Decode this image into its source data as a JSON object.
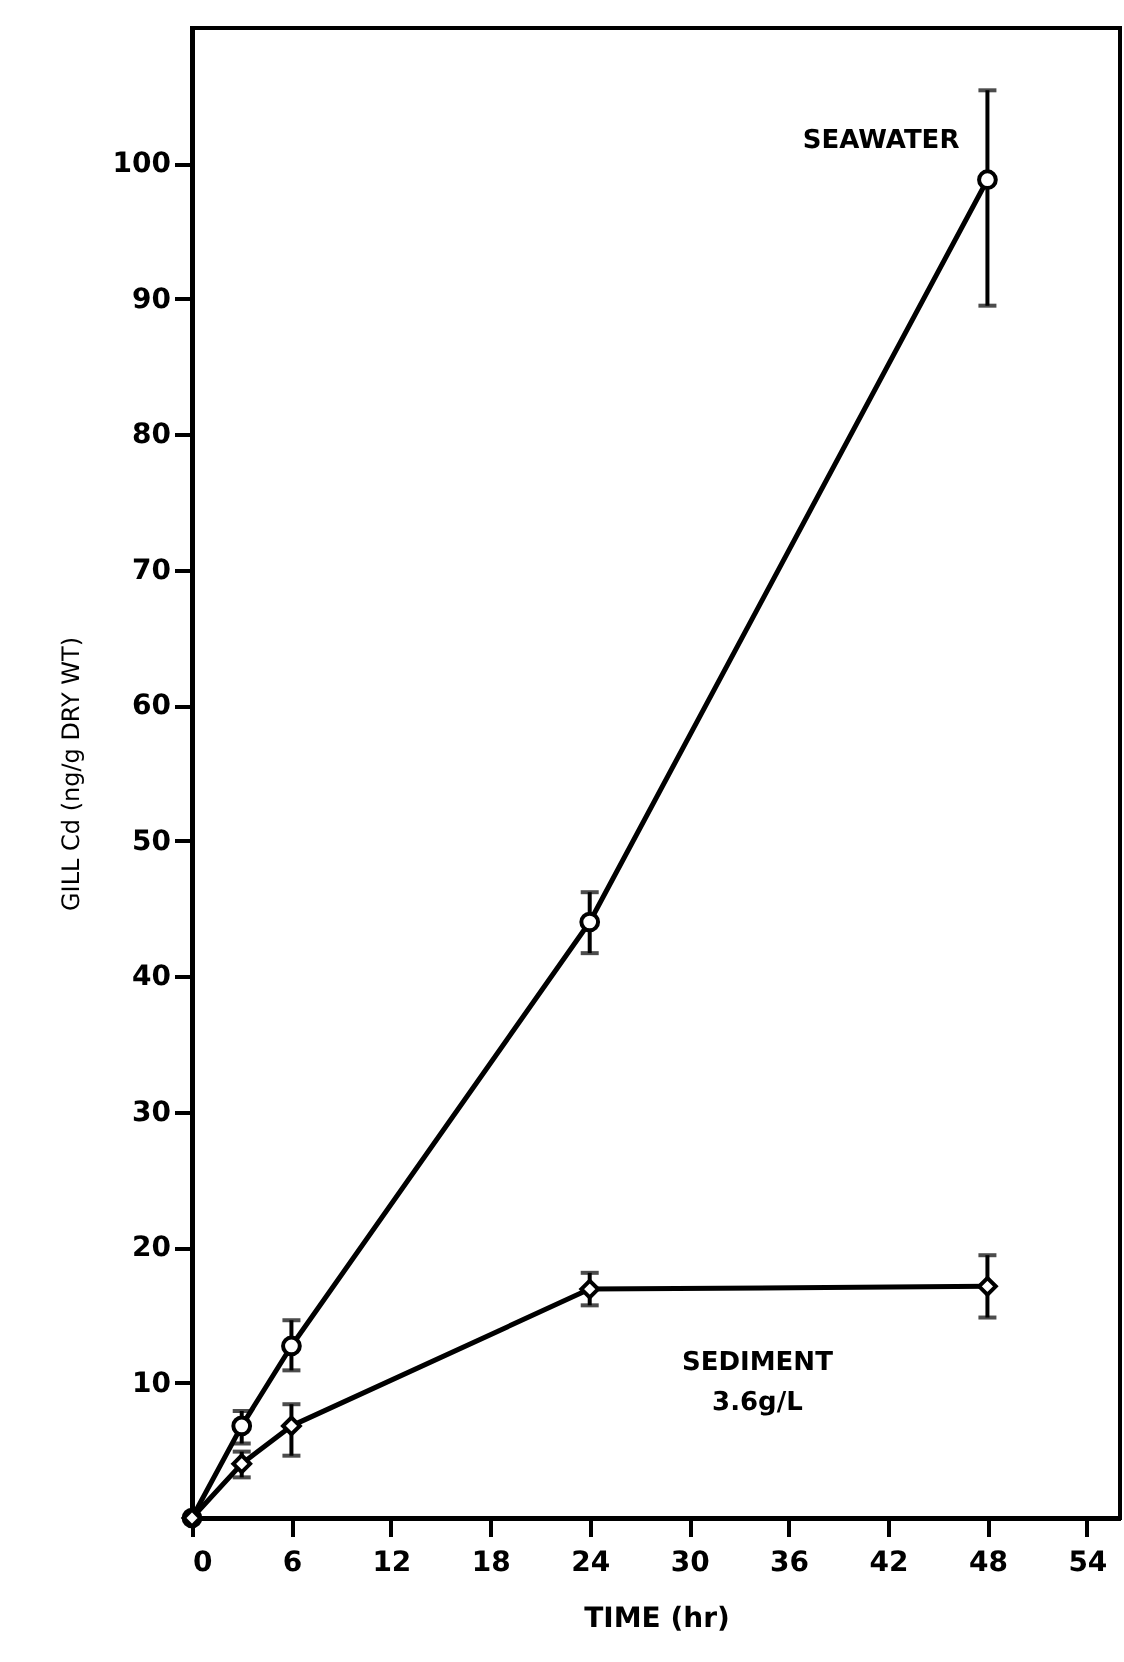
{
  "chart_data": {
    "type": "line",
    "xlabel": "TIME (hr)",
    "ylabel": "GILL Cd (ng/g DRY WT)",
    "xlim": [
      0,
      56
    ],
    "xticks": [
      0,
      6,
      12,
      18,
      24,
      30,
      36,
      42,
      48,
      54
    ],
    "ylim": [
      0,
      110
    ],
    "yticks": [
      10,
      20,
      30,
      40,
      50,
      60,
      70,
      80,
      90,
      100
    ],
    "grid": false,
    "line_style": "solid",
    "series": [
      {
        "name": "SEAWATER",
        "color": "#000000",
        "marker": "circle",
        "x": [
          0,
          3,
          6,
          24,
          48
        ],
        "values": [
          0,
          6.8,
          12.7,
          44.0,
          98.8
        ],
        "errors": [
          null,
          [
            5.5,
            7.9
          ],
          [
            10.9,
            14.6
          ],
          [
            41.7,
            46.2
          ],
          [
            89.5,
            105.4
          ]
        ]
      },
      {
        "name": "SEDIMENT 3.6g/L",
        "color": "#000000",
        "marker": "diamond",
        "x": [
          0,
          3,
          6,
          24,
          48
        ],
        "values": [
          0,
          4.0,
          6.8,
          16.9,
          17.1
        ],
        "errors": [
          null,
          [
            3.0,
            4.9
          ],
          [
            4.6,
            8.4
          ],
          [
            15.7,
            18.1
          ],
          [
            14.8,
            19.4
          ]
        ]
      }
    ]
  }
}
